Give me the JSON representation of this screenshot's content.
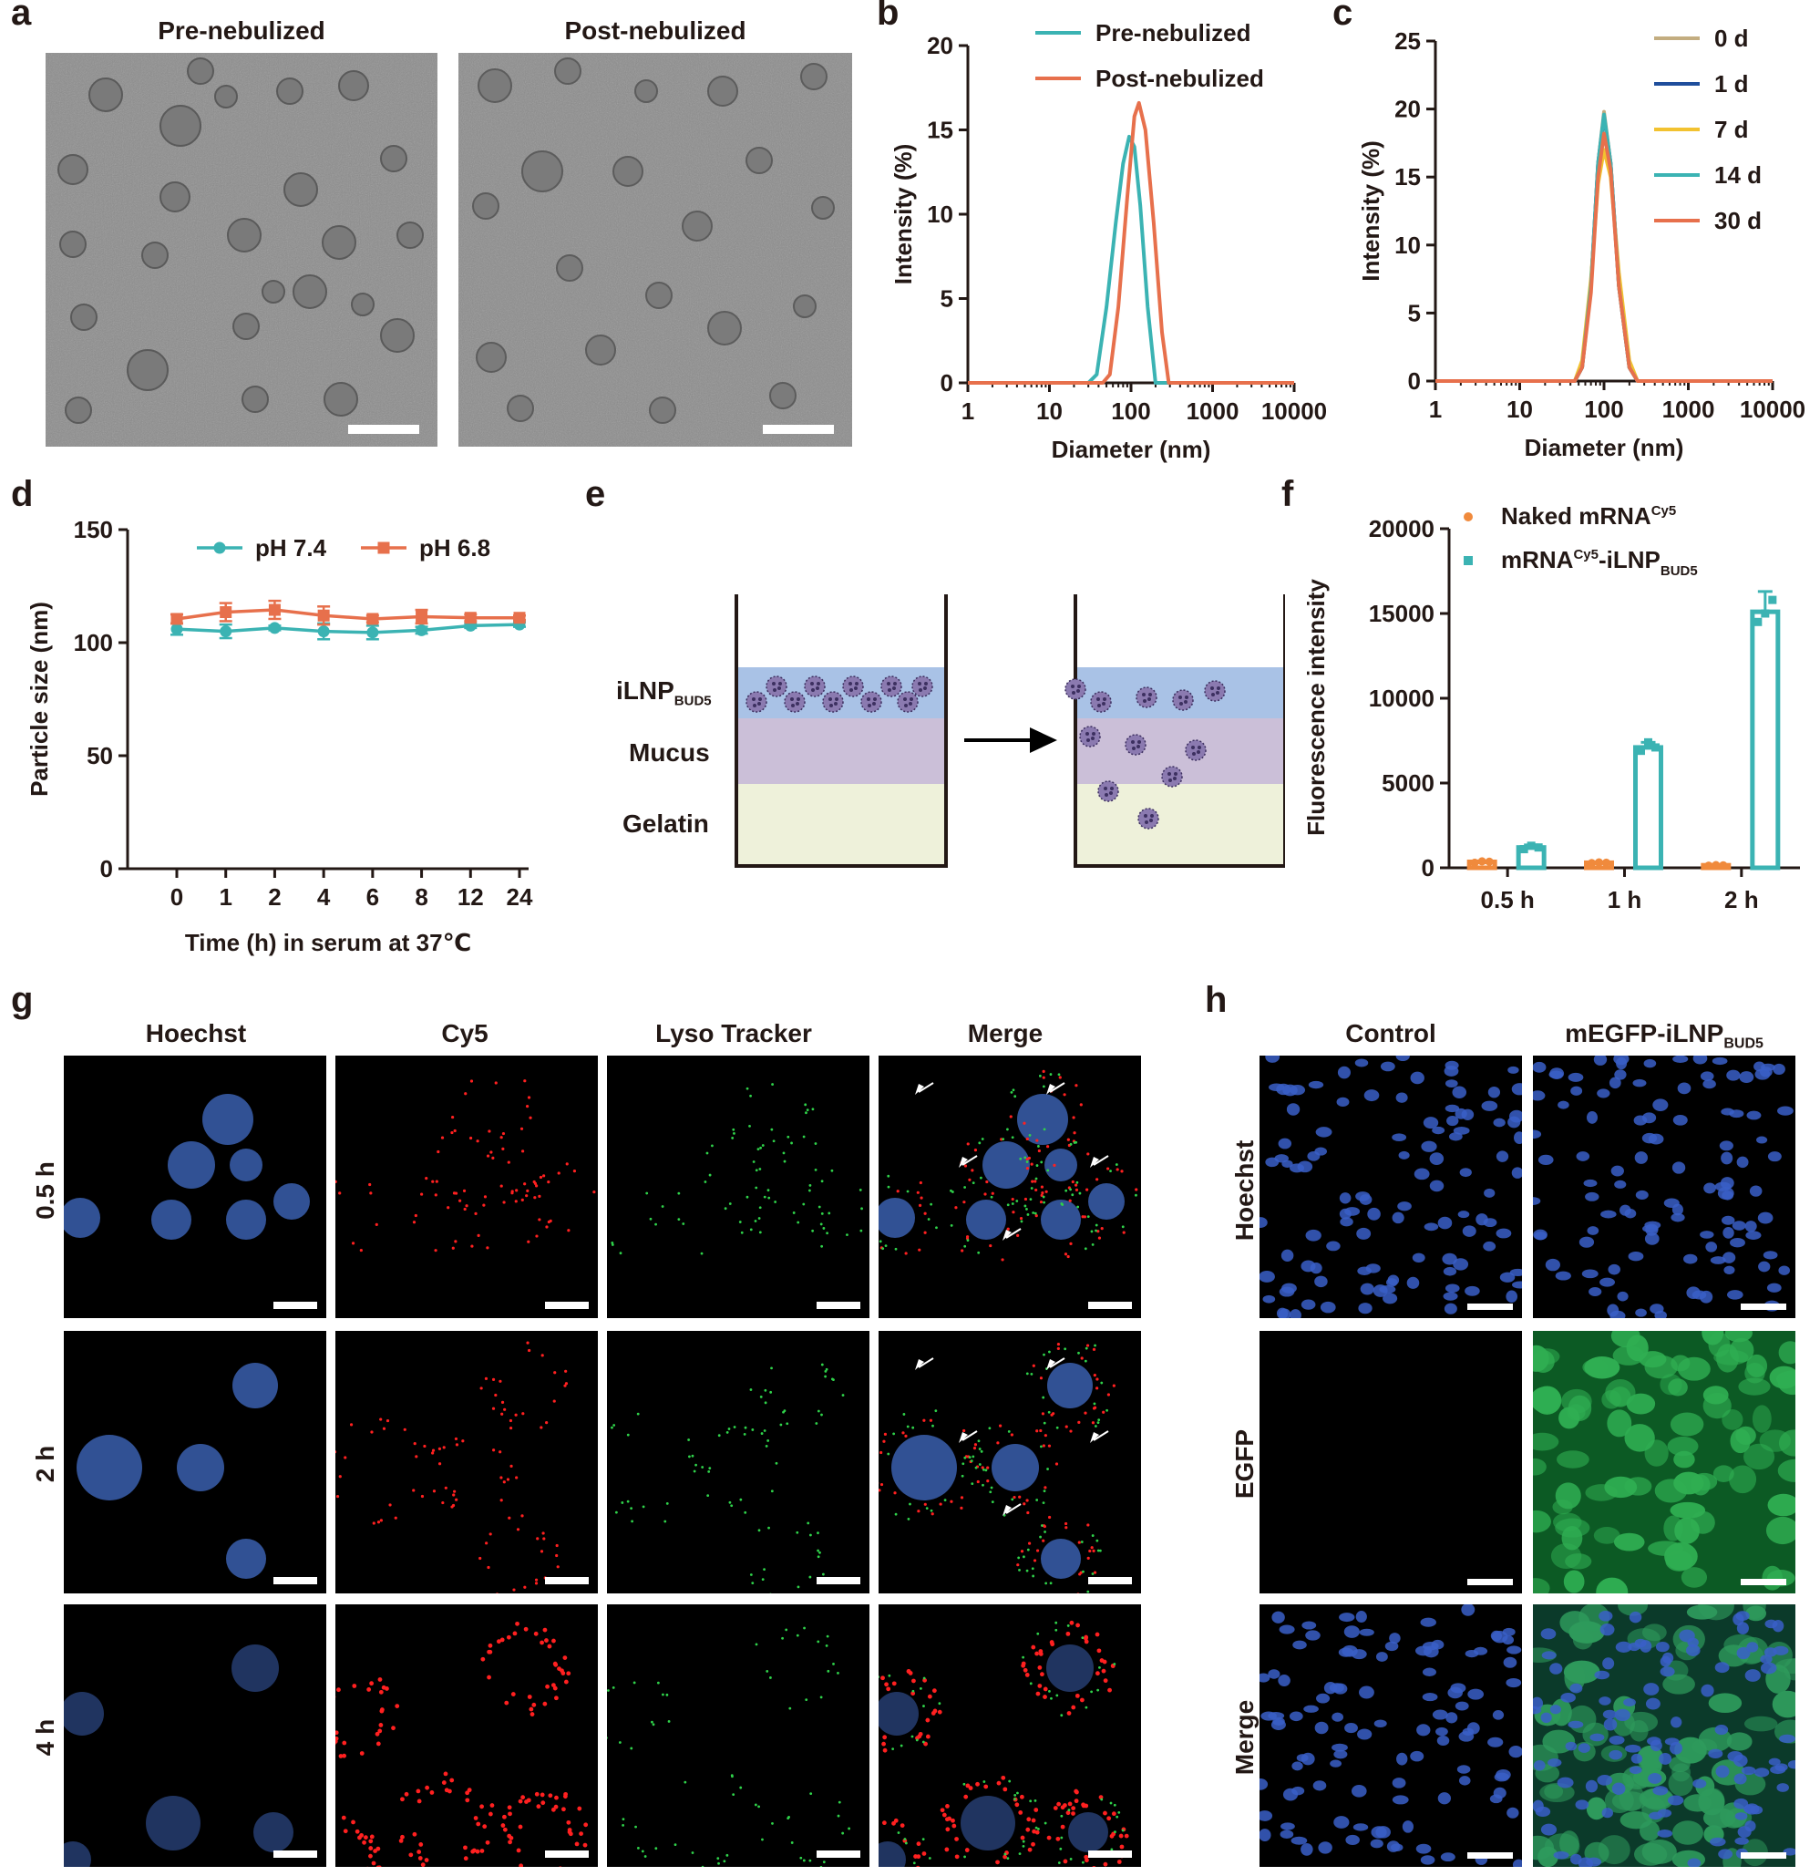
{
  "panels": {
    "a": {
      "label": "a",
      "titles": [
        "Pre-nebulized",
        "Post-nebulized"
      ]
    },
    "b": {
      "label": "b"
    },
    "c": {
      "label": "c"
    },
    "d": {
      "label": "d"
    },
    "e": {
      "label": "e",
      "layers": [
        "iLNP",
        "Mucus",
        "Gelatin"
      ],
      "layer0_sub": "BUD5"
    },
    "f": {
      "label": "f"
    },
    "g": {
      "label": "g",
      "columns": [
        "Hoechst",
        "Cy5",
        "Lyso Tracker",
        "Merge"
      ],
      "rows": [
        "0.5 h",
        "2 h",
        "4 h"
      ]
    },
    "h": {
      "label": "h",
      "columns": [
        "Control",
        "mEGFP-iLNP"
      ],
      "col1_sub": "BUD5",
      "rows": [
        "Hoechst",
        "EGFP",
        "Merge"
      ]
    }
  },
  "chart_data": [
    {
      "panel": "b",
      "type": "line",
      "xscale": "log",
      "xlim": [
        1,
        10000
      ],
      "ylim": [
        0,
        20
      ],
      "xticks": [
        "1",
        "10",
        "100",
        "1000",
        "10000"
      ],
      "yticks": [
        "0",
        "5",
        "10",
        "15",
        "20"
      ],
      "xlabel": "Diameter (nm)",
      "ylabel": "Intensity (%)",
      "legend": "top-right",
      "series": [
        {
          "name": "Pre-nebulized",
          "color": "#3bb3b3",
          "x": [
            1,
            30,
            38,
            50,
            65,
            80,
            95,
            110,
            130,
            160,
            200,
            10000
          ],
          "y": [
            0,
            0,
            0.5,
            4.5,
            9.5,
            13,
            14.6,
            14,
            10.5,
            4.5,
            0,
            0
          ]
        },
        {
          "name": "Post-nebulized",
          "color": "#e7704c",
          "x": [
            1,
            45,
            55,
            70,
            90,
            110,
            125,
            150,
            190,
            240,
            290,
            10000
          ],
          "y": [
            0,
            0,
            0.5,
            4.5,
            11,
            15.8,
            16.6,
            15,
            9.5,
            3,
            0,
            0
          ]
        }
      ]
    },
    {
      "panel": "c",
      "type": "line",
      "xscale": "log",
      "xlim": [
        1,
        10000
      ],
      "ylim": [
        0,
        25
      ],
      "xticks": [
        "1",
        "10",
        "100",
        "1000",
        "10000"
      ],
      "yticks": [
        "0",
        "5",
        "10",
        "15",
        "20",
        "25"
      ],
      "xlabel": "Diameter (nm)",
      "ylabel": "Intensity (%)",
      "legend": "top-right",
      "series": [
        {
          "name": "0 d",
          "color": "#c3ad80",
          "x": [
            1,
            45,
            55,
            70,
            85,
            100,
            120,
            150,
            200,
            250,
            10000
          ],
          "y": [
            0,
            0,
            1,
            7,
            16,
            19.8,
            16,
            7,
            1,
            0,
            0
          ]
        },
        {
          "name": "1 d",
          "color": "#1f4e9c",
          "x": [
            1,
            45,
            55,
            70,
            85,
            100,
            120,
            150,
            200,
            250,
            10000
          ],
          "y": [
            0,
            0,
            1,
            7,
            16,
            19.5,
            16,
            7,
            1,
            0,
            0
          ]
        },
        {
          "name": "7 d",
          "color": "#f2c230",
          "x": [
            1,
            45,
            55,
            70,
            85,
            100,
            120,
            150,
            200,
            250,
            10000
          ],
          "y": [
            0,
            0,
            1.5,
            7.5,
            14.5,
            17,
            15,
            8,
            1.5,
            0,
            0
          ]
        },
        {
          "name": "14 d",
          "color": "#3bb3b3",
          "x": [
            1,
            45,
            55,
            70,
            85,
            100,
            120,
            150,
            200,
            250,
            10000
          ],
          "y": [
            0,
            0,
            1,
            7,
            16,
            19.6,
            16,
            7,
            1,
            0,
            0
          ]
        },
        {
          "name": "30 d",
          "color": "#e7704c",
          "x": [
            1,
            45,
            55,
            70,
            85,
            100,
            120,
            150,
            200,
            250,
            10000
          ],
          "y": [
            0,
            0,
            1,
            6.5,
            15,
            18.2,
            15.5,
            7,
            1,
            0,
            0
          ]
        }
      ]
    },
    {
      "panel": "d",
      "type": "line",
      "categories": [
        "0",
        "1",
        "2",
        "4",
        "6",
        "8",
        "12",
        "24"
      ],
      "ylim": [
        0,
        150
      ],
      "yticks": [
        "0",
        "50",
        "100",
        "150"
      ],
      "xlabel": "Time (h) in serum at 37℃",
      "ylabel": "Particle size (nm)",
      "legend": "top",
      "series": [
        {
          "name": "pH 7.4",
          "color": "#3bb3b3",
          "marker": "circle",
          "values": [
            106,
            105,
            106.5,
            105,
            104.5,
            105.5,
            107.5,
            108
          ],
          "errors": [
            2.5,
            3,
            1,
            3.5,
            3,
            1.5,
            1,
            1
          ]
        },
        {
          "name": "pH 6.8",
          "color": "#e7704c",
          "marker": "square",
          "values": [
            110.5,
            113.5,
            114.5,
            112,
            110.5,
            111.5,
            111,
            111
          ],
          "errors": [
            2,
            4,
            4,
            4,
            1.5,
            3,
            1.5,
            1
          ]
        }
      ]
    },
    {
      "panel": "f",
      "type": "bar",
      "categories": [
        "0.5 h",
        "1 h",
        "2 h"
      ],
      "ylim": [
        0,
        20000
      ],
      "yticks": [
        "0",
        "5000",
        "10000",
        "15000",
        "20000"
      ],
      "xlabel": "",
      "ylabel": "Fluorescence intensity",
      "legend": "top-left",
      "series": [
        {
          "name": "Naked mRNA",
          "name_sup": "Cy5",
          "color": "#f08a3c",
          "marker": "circle",
          "values": [
            350,
            300,
            150
          ],
          "errors": [
            60,
            50,
            30
          ],
          "points": [
            [
              300,
              380,
              360
            ],
            [
              280,
              320,
              300
            ],
            [
              130,
              160,
              150
            ]
          ]
        },
        {
          "name": "mRNA",
          "name_sup": "Cy5",
          "name_suffix": "-iLNP",
          "name_sub": "BUD5",
          "color": "#3bb3b3",
          "marker": "square",
          "values": [
            1200,
            7100,
            15100
          ],
          "errors": [
            150,
            300,
            1200
          ],
          "points": [
            [
              1100,
              1300,
              1200
            ],
            [
              6900,
              7400,
              7100
            ],
            [
              14500,
              15000,
              15800
            ]
          ]
        }
      ]
    }
  ]
}
